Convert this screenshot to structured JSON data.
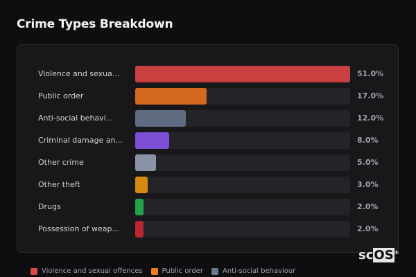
{
  "title": "Crime Types Breakdown",
  "chart_data": {
    "type": "bar",
    "orientation": "horizontal",
    "title": "Crime Types Breakdown",
    "categories": [
      "Violence and sexua...",
      "Public order",
      "Anti-social behavi...",
      "Criminal damage an...",
      "Other crime",
      "Other theft",
      "Drugs",
      "Possession of weap..."
    ],
    "values": [
      51.0,
      17.0,
      12.0,
      8.0,
      5.0,
      3.0,
      2.0,
      2.0
    ],
    "value_labels": [
      "51.0%",
      "17.0%",
      "12.0%",
      "8.0%",
      "5.0%",
      "3.0%",
      "2.0%",
      "2.0%"
    ],
    "colors": [
      "#c94040",
      "#d2691e",
      "#5f6b7e",
      "#7b4fd6",
      "#8a94a6",
      "#d4890f",
      "#22a24a",
      "#b8282e"
    ],
    "scale_max": 51.0,
    "legend": [
      {
        "label": "Violence and sexual offences",
        "color": "#e04848"
      },
      {
        "label": "Public order",
        "color": "#f07f1a"
      },
      {
        "label": "Anti-social behaviour",
        "color": "#6b7a90"
      }
    ],
    "legend_position": "bottom"
  },
  "logo": {
    "text_a": "sc",
    "text_b": "OS",
    "mark": "®"
  }
}
